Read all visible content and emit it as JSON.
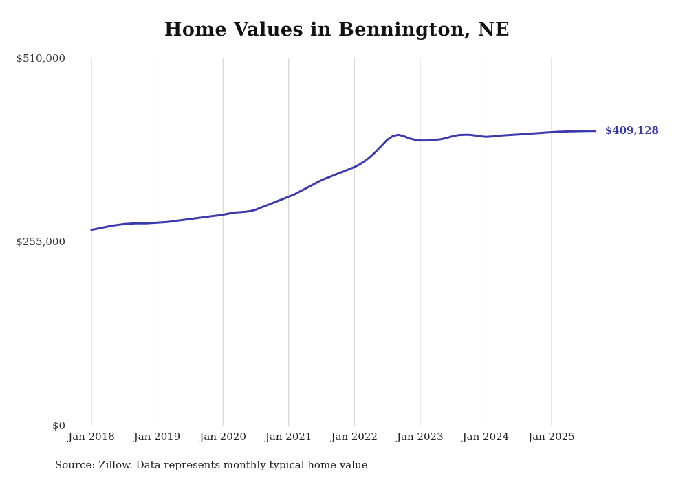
{
  "title": "Home Values in Bennington, NE",
  "source_note": "Source: Zillow. Data represents monthly typical home value",
  "end_label": "$409,128",
  "colors": {
    "line": "#3a3aad",
    "grid": "#cccccc",
    "text": "#222222"
  },
  "chart_data": {
    "type": "line",
    "title": "Home Values in Bennington, NE",
    "series_name": "Typical home value",
    "xlabel": "",
    "ylabel": "",
    "ylim": [
      0,
      510000
    ],
    "grid": "vertical-only",
    "legend": "none",
    "y_ticks": [
      {
        "value": 0,
        "label": "$0"
      },
      {
        "value": 255000,
        "label": "$255,000"
      },
      {
        "value": 510000,
        "label": "$510,000"
      }
    ],
    "x_tick_labels": [
      "Jan 2018",
      "Jan 2019",
      "Jan 2020",
      "Jan 2021",
      "Jan 2022",
      "Jan 2023",
      "Jan 2024",
      "Jan 2025"
    ],
    "x_start": "2018-01",
    "x_frequency": "monthly",
    "latest_value": 409128,
    "latest_value_label": "$409,128",
    "values": [
      272000,
      273500,
      275000,
      276500,
      278000,
      279000,
      280000,
      280500,
      281000,
      281000,
      281000,
      281500,
      282000,
      282500,
      283000,
      284000,
      285000,
      286000,
      287000,
      288000,
      289000,
      290000,
      291000,
      292000,
      293000,
      294500,
      296000,
      296500,
      297000,
      298000,
      300000,
      303000,
      306000,
      309000,
      312000,
      315000,
      318000,
      321000,
      325000,
      329000,
      333000,
      337000,
      341000,
      344000,
      347000,
      350000,
      353000,
      356000,
      359000,
      363000,
      368000,
      374000,
      381000,
      389000,
      397000,
      402000,
      404000,
      402000,
      399000,
      397000,
      396000,
      396000,
      396500,
      397000,
      398000,
      400000,
      402000,
      403500,
      404000,
      404000,
      403000,
      402000,
      401000,
      401500,
      402000,
      403000,
      403500,
      404000,
      404500,
      405000,
      405500,
      406000,
      406500,
      407000,
      407500,
      408000,
      408300,
      408600,
      408800,
      409000,
      409050,
      409100,
      409128
    ]
  }
}
